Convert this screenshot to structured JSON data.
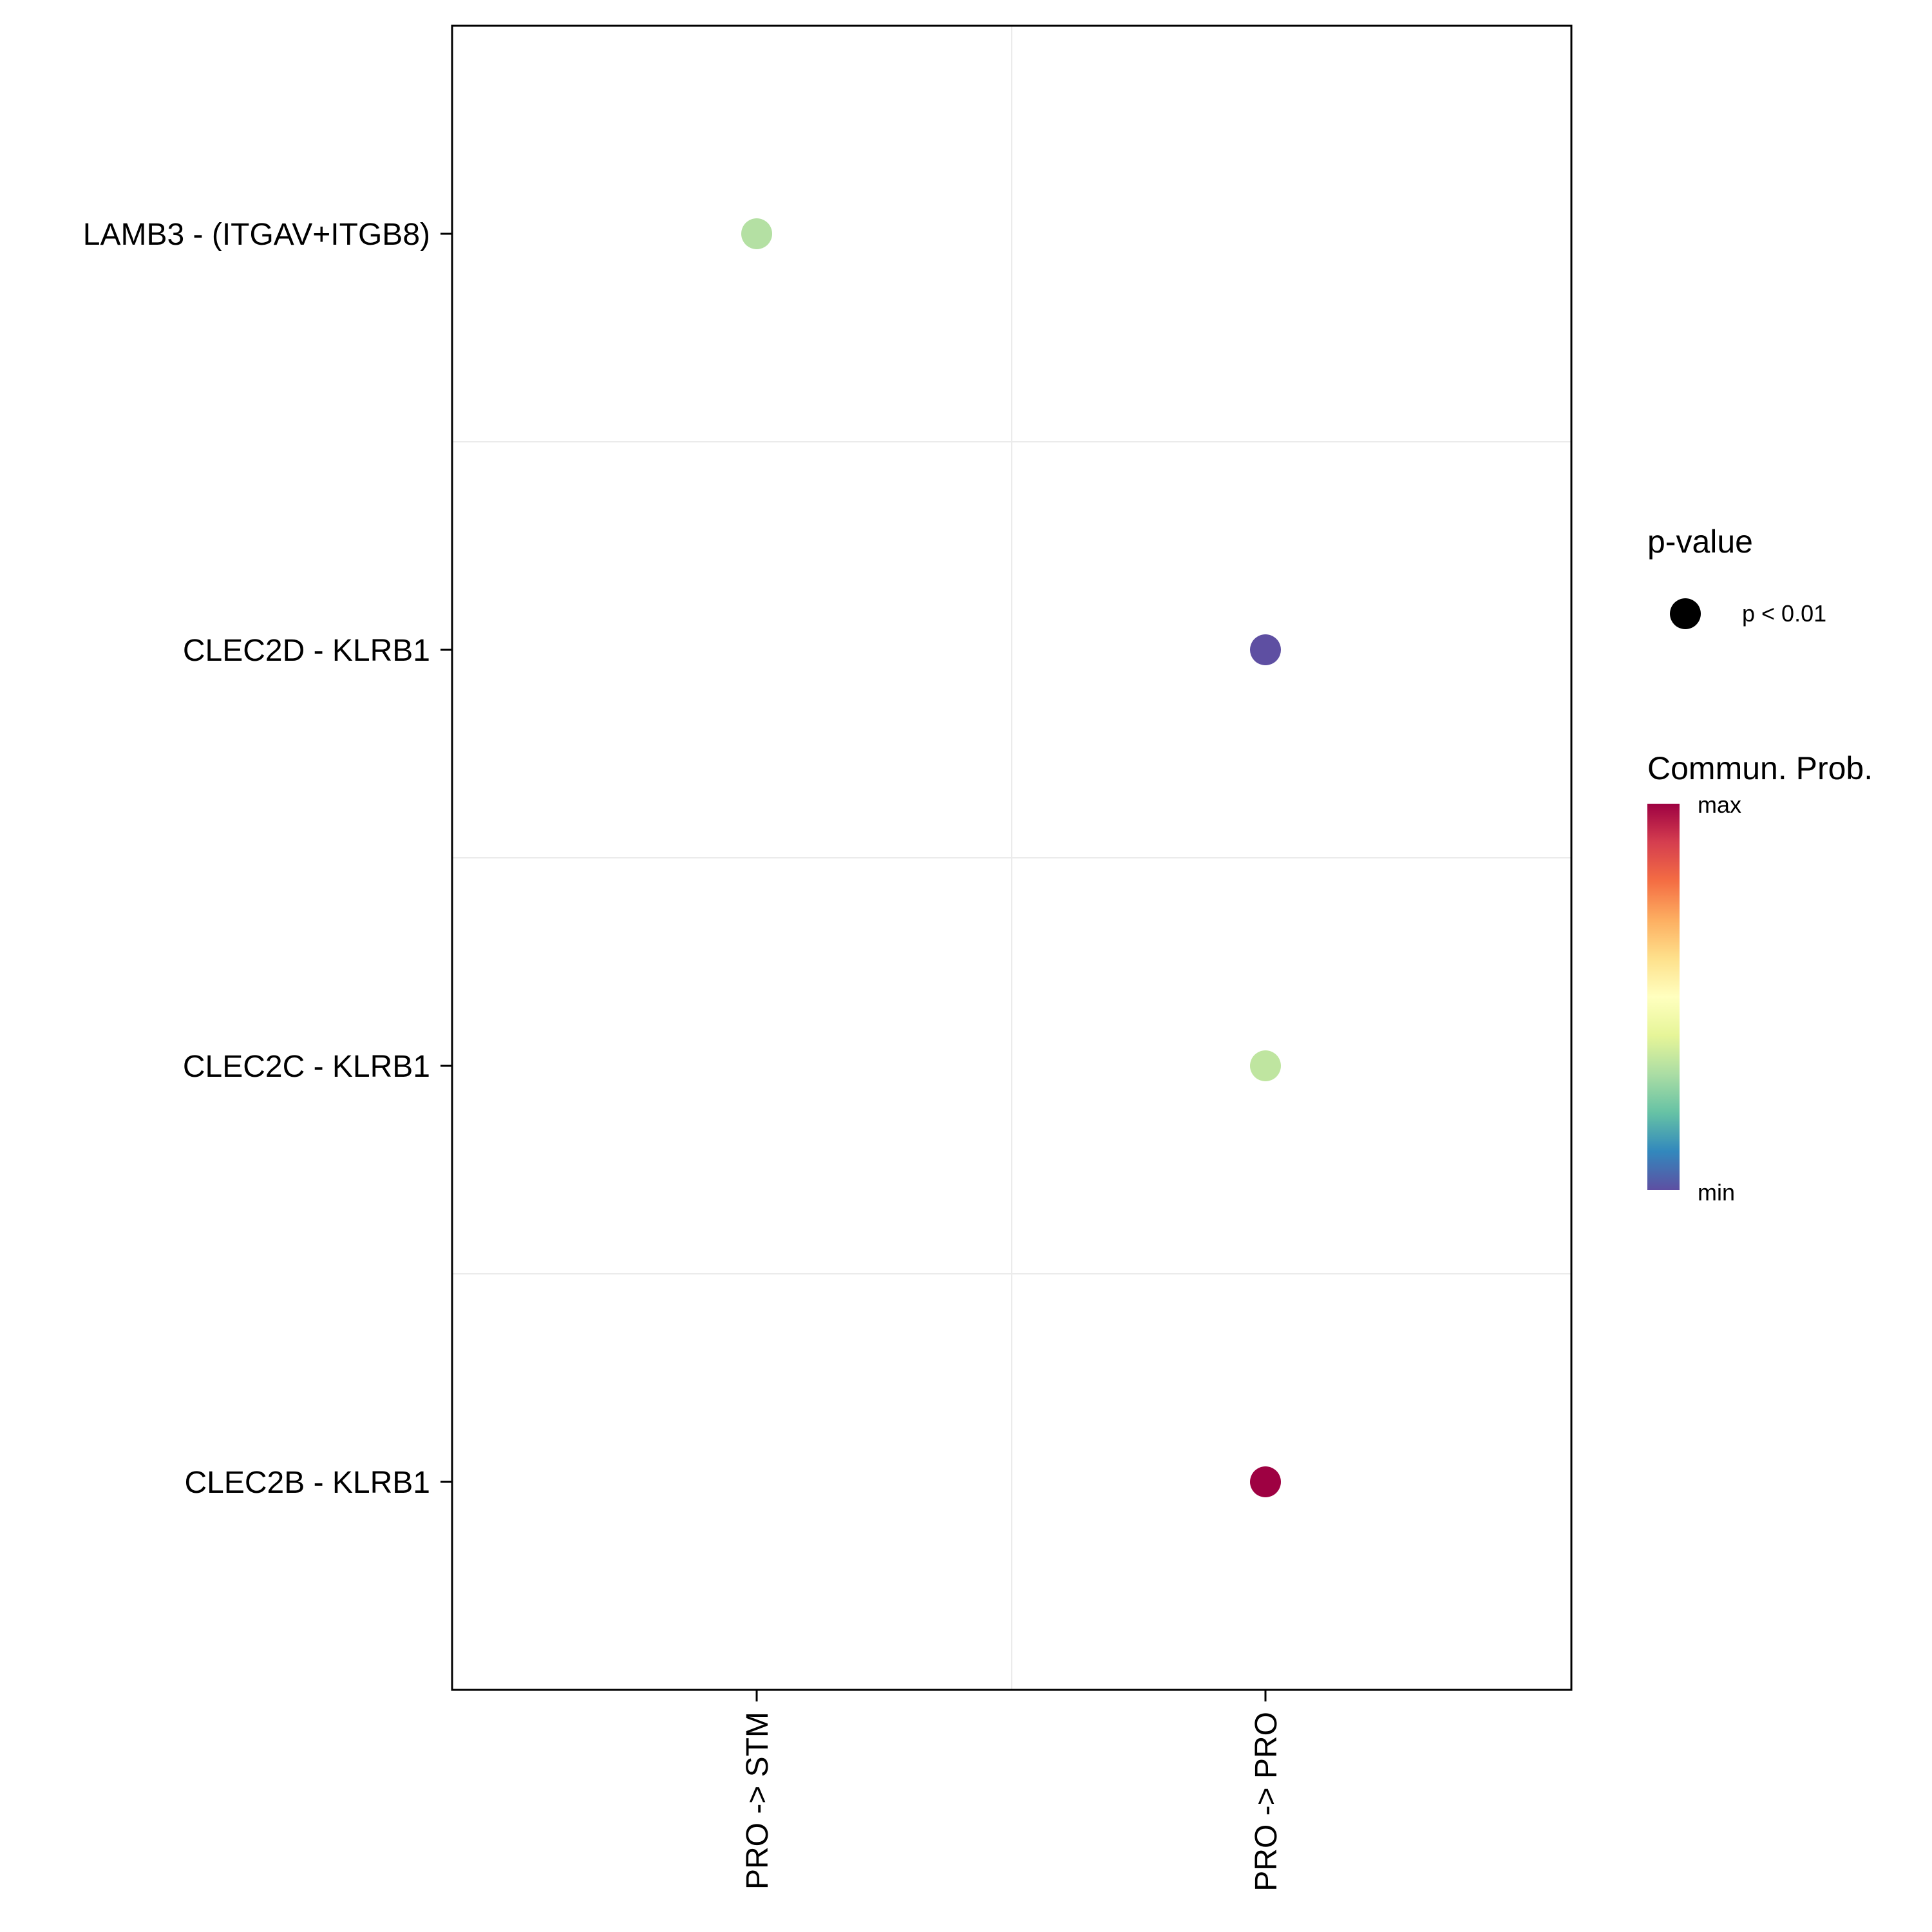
{
  "chart_data": {
    "type": "scatter",
    "x_categories": [
      "PRO -> STM",
      "PRO -> PRO"
    ],
    "y_categories": [
      "CLEC2B - KLRB1",
      "CLEC2C - KLRB1",
      "CLEC2D - KLRB1",
      "LAMB3 - (ITGAV+ITGB8)"
    ],
    "points": [
      {
        "x": "PRO -> STM",
        "y": "LAMB3 - (ITGAV+ITGB8)",
        "prob": 0.38,
        "color": "#b4e0a3"
      },
      {
        "x": "PRO -> PRO",
        "y": "CLEC2D - KLRB1",
        "prob": 0.0,
        "color": "#5e4fa2"
      },
      {
        "x": "PRO -> PRO",
        "y": "CLEC2C - KLRB1",
        "prob": 0.4,
        "color": "#bfe5a0"
      },
      {
        "x": "PRO -> PRO",
        "y": "CLEC2B - KLRB1",
        "prob": 1.0,
        "color": "#9e0142"
      }
    ],
    "title": "",
    "xlabel": "",
    "ylabel": "",
    "grid": true,
    "legend": {
      "placement": "right",
      "pvalue": {
        "title": "p-value",
        "entries": [
          {
            "label": "p < 0.01",
            "color": "#000000"
          }
        ]
      },
      "colorbar": {
        "title": "Commun. Prob.",
        "max_label": "max",
        "min_label": "min",
        "palette": [
          "#5e4fa2",
          "#3288bd",
          "#66c2a5",
          "#abdda4",
          "#e6f598",
          "#ffffbf",
          "#fee08b",
          "#fdae61",
          "#f46d43",
          "#d53e4f",
          "#9e0142"
        ]
      }
    }
  }
}
